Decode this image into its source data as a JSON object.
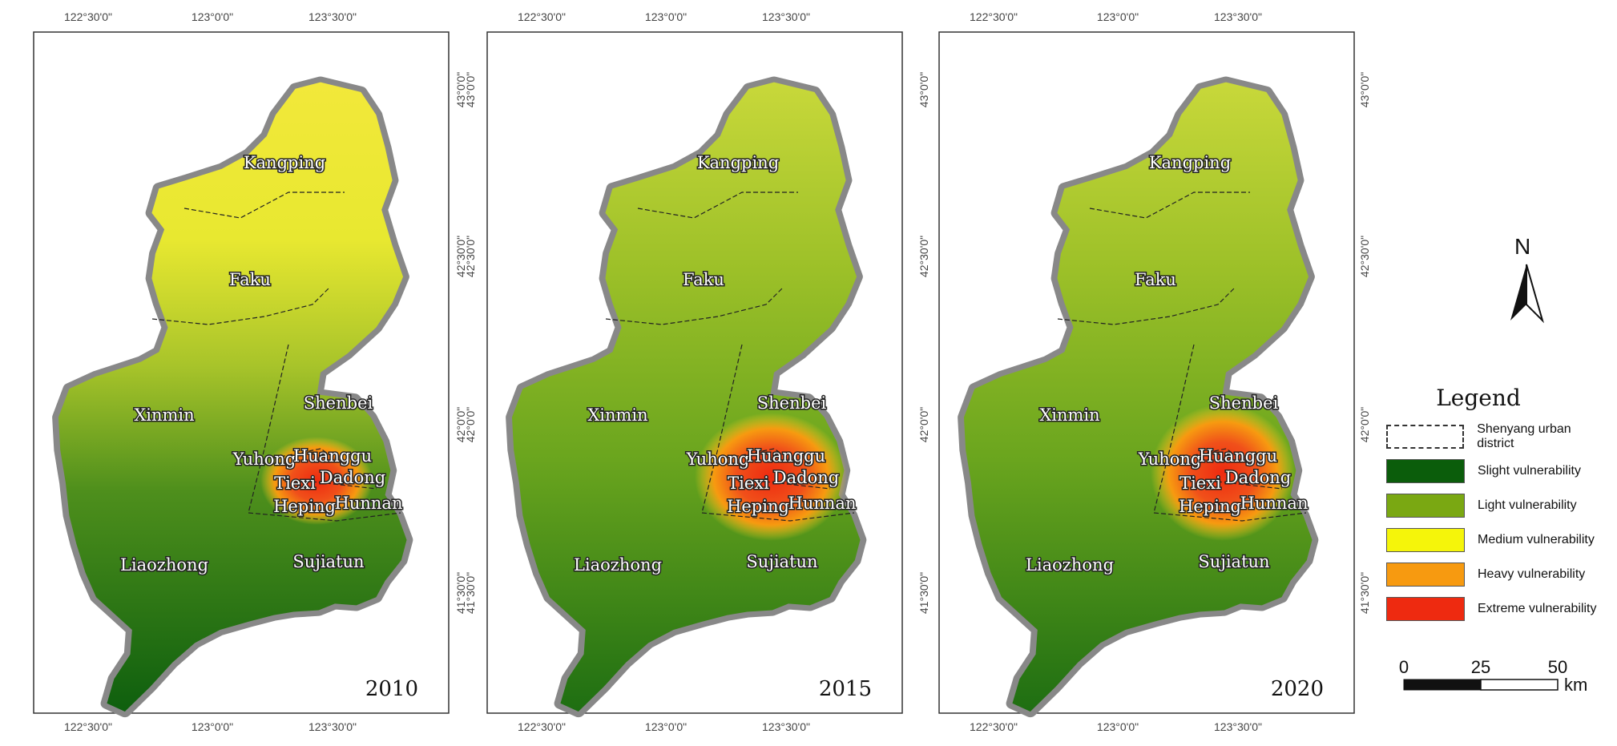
{
  "maps": [
    {
      "year": "2010",
      "top_coords": [
        "122°30'0\"",
        "123°0'0\"",
        "123°30'0\""
      ],
      "bottom_coords": [
        "122°30'0\"",
        "123°0'0\"",
        "123°30'0\""
      ],
      "right_coords": [
        "43°0'0\"",
        "42°30'0\"",
        "42°0'0\"",
        "41°30'0\""
      ]
    },
    {
      "year": "2015",
      "top_coords": [
        "122°30'0\"",
        "123°0'0\"",
        "123°30'0\""
      ],
      "bottom_coords": [
        "122°30'0\"",
        "123°0'0\"",
        "123°30'0\""
      ],
      "left_coords": [
        "43°0'0\"",
        "42°30'0\"",
        "42°0'0\"",
        "41°30'0\""
      ]
    },
    {
      "year": "2020",
      "top_coords": [
        "122°30'0\"",
        "123°0'0\"",
        "123°30'0\""
      ],
      "bottom_coords": [
        "122°30'0\"",
        "123°0'0\"",
        "123°30'0\""
      ],
      "left_coords": [
        "43°0'0\"",
        "42°30'0\"",
        "42°0'0\"",
        "41°30'0\""
      ],
      "right_coords": [
        "43°0'0\"",
        "42°30'0\"",
        "42°0'0\"",
        "41°30'0\""
      ]
    }
  ],
  "districts": {
    "kangping": "Kangping",
    "faku": "Faku",
    "xinmin": "Xinmin",
    "shenbei": "Shenbei",
    "yuhong": "Yuhong",
    "huanggu": "Huanggu",
    "tiexi": "Tiexi",
    "dadong": "Dadong",
    "heping": "Heping",
    "hunnan": "Hunnan",
    "liaozhong": "Liaozhong",
    "sujiatun": "Sujiatun"
  },
  "north_arrow": {
    "label": "N"
  },
  "legend": {
    "title": "Legend",
    "items": [
      {
        "label": "Shenyang urban district",
        "color": "#ffffff",
        "style": "dashed"
      },
      {
        "label": "Slight vulnerability",
        "color": "#0b5d0b"
      },
      {
        "label": "Light vulnerability",
        "color": "#7aa812"
      },
      {
        "label": "Medium vulnerability",
        "color": "#f5f50a"
      },
      {
        "label": "Heavy vulnerability",
        "color": "#f79a10"
      },
      {
        "label": "Extreme vulnerability",
        "color": "#ee2a10"
      }
    ]
  },
  "scale_bar": {
    "ticks": [
      "0",
      "25",
      "50"
    ],
    "unit": "km"
  }
}
